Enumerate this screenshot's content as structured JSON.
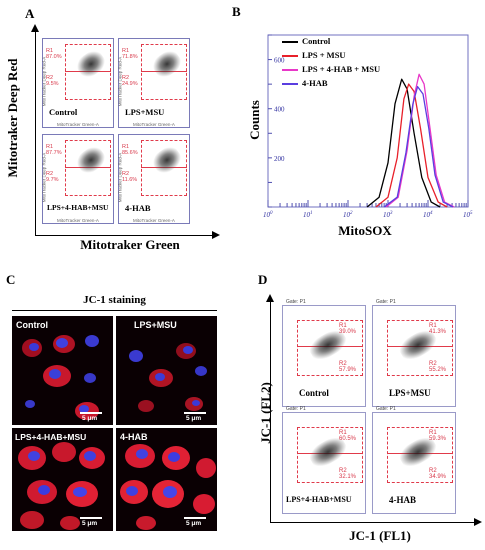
{
  "panels": {
    "A": {
      "letter": "A",
      "ylabel": "Mitotraker Deep Red",
      "xlabel": "Mitotraker Green",
      "sub_xlabel": "MitoTracker Green-A",
      "sub_ylabel": "MitoTracker Deep Red-A",
      "plots": [
        {
          "condition": "Control",
          "r1_label": "R1",
          "r1_value": "87.0%",
          "r2_label": "R2",
          "r2_value": "9.5%"
        },
        {
          "condition": "LPS+MSU",
          "r1_label": "R1",
          "r1_value": "71.8%",
          "r2_label": "R2",
          "r2_value": "24.9%"
        },
        {
          "condition": "LPS+4-HAB+MSU",
          "r1_label": "R1",
          "r1_value": "87.7%",
          "r2_label": "R2",
          "r2_value": "9.7%"
        },
        {
          "condition": "4-HAB",
          "r1_label": "R1",
          "r1_value": "85.6%",
          "r2_label": "R2",
          "r2_value": "11.6%"
        }
      ]
    },
    "B": {
      "letter": "B",
      "ylabel": "Counts",
      "xlabel": "MitoSOX",
      "legend": [
        {
          "name": "Control",
          "color": "#000000"
        },
        {
          "name": "LPS + MSU",
          "color": "#e8202a"
        },
        {
          "name": "LPS + 4-HAB + MSU",
          "color": "#e838c8"
        },
        {
          "name": "4-HAB",
          "color": "#5a3ee0"
        }
      ]
    },
    "C": {
      "letter": "C",
      "title": "JC-1 staining",
      "images": [
        {
          "condition": "Control",
          "scale": "5 μm"
        },
        {
          "condition": "LPS+MSU",
          "scale": "5 μm"
        },
        {
          "condition": "LPS+4-HAB+MSU",
          "scale": "5 μm"
        },
        {
          "condition": "4-HAB",
          "scale": "5 μm"
        }
      ]
    },
    "D": {
      "letter": "D",
      "ylabel": "JC-1 (FL2)",
      "xlabel": "JC-1 (FL1)",
      "gate": "Gate: P1",
      "plots": [
        {
          "condition": "Control",
          "r1_label": "R1",
          "r1_value": "39.0%",
          "r2_label": "R2",
          "r2_value": "57.9%"
        },
        {
          "condition": "LPS+MSU",
          "r1_label": "R1",
          "r1_value": "41.3%",
          "r2_label": "R2",
          "r2_value": "55.2%"
        },
        {
          "condition": "LPS+4-HAB+MSU",
          "r1_label": "R1",
          "r1_value": "60.5%",
          "r2_label": "R2",
          "r2_value": "32.1%"
        },
        {
          "condition": "4-HAB",
          "r1_label": "R1",
          "r1_value": "59.3%",
          "r2_label": "R2",
          "r2_value": "34.9%"
        }
      ]
    }
  },
  "chart_data": {
    "type": "line",
    "xlabel": "MitoSOX",
    "ylabel": "Counts",
    "x_scale": "log",
    "xlim": [
      1,
      100000
    ],
    "ylim": [
      0,
      700
    ],
    "yticks": [
      0,
      100,
      200,
      300,
      400,
      500,
      600,
      700
    ],
    "xticks": [
      "10^0",
      "10^1",
      "10^2",
      "10^3",
      "10^4",
      "10^5"
    ],
    "series": [
      {
        "name": "Control",
        "color": "#000000",
        "x": [
          300,
          600,
          1000,
          1500,
          2200,
          3000,
          4500,
          7000,
          12000,
          20000
        ],
        "y": [
          0,
          40,
          180,
          420,
          520,
          480,
          300,
          120,
          20,
          0
        ]
      },
      {
        "name": "LPS + MSU",
        "color": "#e8202a",
        "x": [
          500,
          1000,
          1700,
          2500,
          3300,
          4500,
          6500,
          10000,
          18000,
          30000
        ],
        "y": [
          0,
          40,
          200,
          440,
          500,
          470,
          320,
          120,
          20,
          0
        ]
      },
      {
        "name": "LPS + 4-HAB + MSU",
        "color": "#e838c8",
        "x": [
          900,
          1800,
          3000,
          4500,
          6000,
          8000,
          11000,
          16000,
          26000,
          45000
        ],
        "y": [
          0,
          40,
          230,
          450,
          540,
          500,
          330,
          130,
          20,
          0
        ]
      },
      {
        "name": "4-HAB",
        "color": "#5a3ee0",
        "x": [
          800,
          1700,
          2800,
          4200,
          5500,
          7500,
          10500,
          15000,
          24000,
          42000
        ],
        "y": [
          0,
          40,
          220,
          420,
          490,
          460,
          320,
          130,
          20,
          0
        ]
      }
    ]
  }
}
